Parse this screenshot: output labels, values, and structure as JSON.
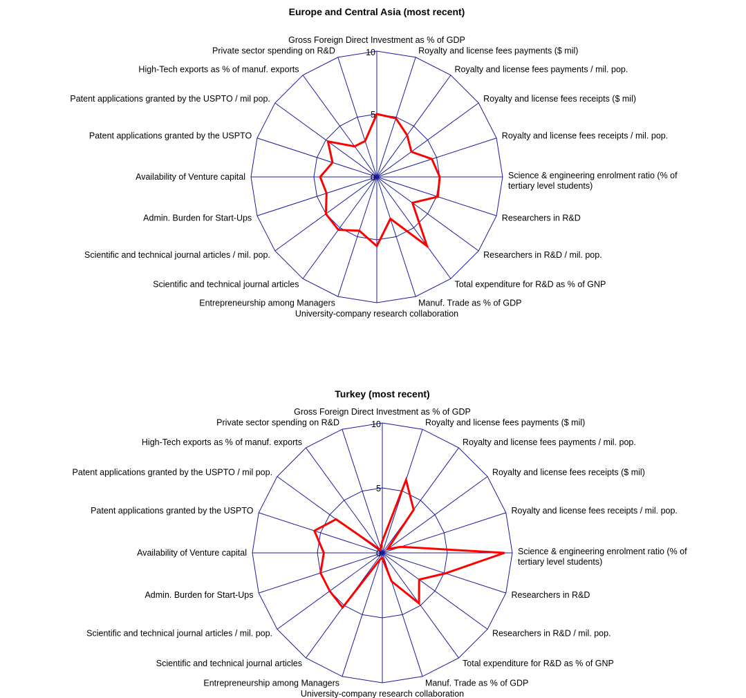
{
  "colors": {
    "grid": "#1a1a9e",
    "series": "#ff0000",
    "background": "#ffffff"
  },
  "chart_data": [
    {
      "type": "radar",
      "title": "Europe and Central Asia (most recent)",
      "axis_range": [
        0,
        10
      ],
      "ticks": [
        "0",
        "5",
        "10"
      ],
      "grid_rings": [
        5,
        10
      ],
      "legend": "none",
      "categories": [
        "Gross Foreign Direct Investment as % of GDP",
        "Royalty and license fees payments ($ mil)",
        "Royalty and license fees payments / mil. pop.",
        "Royalty and license fees receipts ($ mil)",
        "Royalty and license fees receipts / mil. pop.",
        "Science & engineering enrolment ratio (% of tertiary level students)",
        "Researchers in R&D",
        "Researchers in R&D / mil. pop.",
        "Total expenditure for R&D as % of GNP",
        "Manuf. Trade as % of GDP",
        "University-company research collaboration",
        "Entrepreneurship among Managers",
        "Scientific and technical journal articles",
        "Scientific and technical journal articles / mil. pop.",
        "Admin. Burden for Start-Ups",
        "Availability of Venture capital",
        "Patent applications granted by the USPTO",
        "Patent applications granted by the USPTO / mil pop.",
        "High-Tech exports as % of manuf. exports",
        "Private sector spending on R&D"
      ],
      "series": [
        {
          "values": [
            5.0,
            4.9,
            4.1,
            3.4,
            4.6,
            5.0,
            5.1,
            3.5,
            6.8,
            3.5,
            5.5,
            4.5,
            5.2,
            5.0,
            4.2,
            4.5,
            3.7,
            4.8,
            3.0,
            3.0
          ]
        }
      ]
    },
    {
      "type": "radar",
      "title": "Turkey (most recent)",
      "axis_range": [
        0,
        10
      ],
      "ticks": [
        "0",
        "5",
        "10"
      ],
      "grid_rings": [
        5,
        10
      ],
      "legend": "none",
      "categories": [
        "Gross Foreign Direct Investment as % of GDP",
        "Royalty and license fees payments ($ mil)",
        "Royalty and license fees payments / mil. pop.",
        "Royalty and license fees receipts ($ mil)",
        "Royalty and license fees receipts / mil. pop.",
        "Science & engineering enrolment ratio (% of tertiary level students)",
        "Researchers in R&D",
        "Researchers in R&D / mil. pop.",
        "Total expenditure for R&D as % of GNP",
        "Manuf. Trade as % of GDP",
        "University-company research collaboration",
        "Entrepreneurship among Managers",
        "Scientific and technical journal articles",
        "Scientific and technical journal articles / mil. pop.",
        "Admin. Burden for Start-Ups",
        "Availability of Venture capital",
        "Patent applications granted by the USPTO",
        "Patent applications granted by the USPTO / mil pop.",
        "High-Tech exports as % of manuf. exports",
        "Private sector spending on R&D"
      ],
      "series": [
        {
          "values": [
            0.9,
            5.9,
            4.1,
            0.5,
            1.5,
            9.4,
            5.1,
            3.5,
            4.8,
            2.3,
            0.4,
            0.5,
            5.2,
            5.0,
            5.0,
            4.5,
            5.5,
            4.4,
            0.3,
            0.4
          ]
        }
      ]
    }
  ]
}
